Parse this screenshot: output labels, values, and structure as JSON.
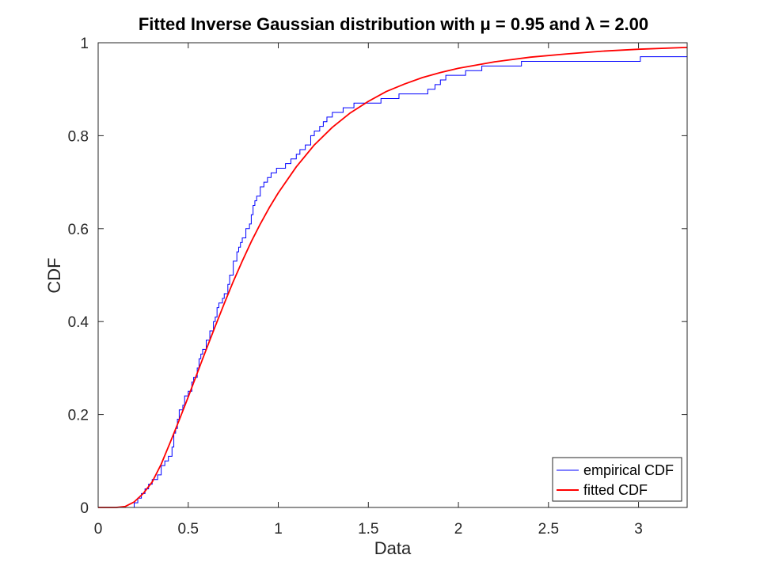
{
  "chart_data": {
    "type": "line",
    "title": "Fitted Inverse Gaussian distribution with μ = 0.95 and λ = 2.00",
    "xlabel": "Data",
    "ylabel": "CDF",
    "xlim": [
      0,
      3.27
    ],
    "ylim": [
      0,
      1
    ],
    "x_ticks": [
      0,
      0.5,
      1,
      1.5,
      2,
      2.5,
      3
    ],
    "x_tick_labels": [
      "0",
      "0.5",
      "1",
      "1.5",
      "2",
      "2.5",
      "3"
    ],
    "y_ticks": [
      0,
      0.2,
      0.4,
      0.6,
      0.8,
      1
    ],
    "y_tick_labels": [
      "0",
      "0.2",
      "0.4",
      "0.6",
      "0.8",
      "1"
    ],
    "grid": false,
    "legend_position": "bottom-right",
    "series": [
      {
        "name": "empirical CDF",
        "color": "#0000ff",
        "style": "stairs",
        "x": [
          0.2,
          0.22,
          0.24,
          0.26,
          0.28,
          0.3,
          0.33,
          0.35,
          0.37,
          0.39,
          0.41,
          0.42,
          0.43,
          0.44,
          0.45,
          0.47,
          0.48,
          0.5,
          0.52,
          0.53,
          0.55,
          0.56,
          0.57,
          0.58,
          0.6,
          0.62,
          0.64,
          0.65,
          0.66,
          0.67,
          0.69,
          0.7,
          0.72,
          0.73,
          0.75,
          0.77,
          0.78,
          0.79,
          0.8,
          0.82,
          0.84,
          0.85,
          0.86,
          0.87,
          0.88,
          0.9,
          0.92,
          0.94,
          0.96,
          0.99,
          1.04,
          1.07,
          1.1,
          1.12,
          1.15,
          1.18,
          1.2,
          1.23,
          1.25,
          1.27,
          1.3,
          1.36,
          1.42,
          1.57,
          1.67,
          1.73,
          1.83,
          1.87,
          1.9,
          1.93,
          2.04,
          2.13,
          2.35,
          3.01,
          3.27
        ],
        "y": [
          0.01,
          0.02,
          0.03,
          0.04,
          0.05,
          0.06,
          0.07,
          0.09,
          0.1,
          0.11,
          0.13,
          0.16,
          0.17,
          0.19,
          0.21,
          0.22,
          0.24,
          0.25,
          0.27,
          0.28,
          0.3,
          0.32,
          0.33,
          0.34,
          0.36,
          0.38,
          0.4,
          0.41,
          0.43,
          0.44,
          0.45,
          0.46,
          0.48,
          0.5,
          0.53,
          0.55,
          0.56,
          0.57,
          0.58,
          0.6,
          0.61,
          0.63,
          0.65,
          0.66,
          0.67,
          0.69,
          0.7,
          0.71,
          0.72,
          0.73,
          0.74,
          0.75,
          0.76,
          0.77,
          0.78,
          0.8,
          0.81,
          0.82,
          0.83,
          0.84,
          0.85,
          0.86,
          0.87,
          0.88,
          0.89,
          0.89,
          0.9,
          0.91,
          0.92,
          0.93,
          0.94,
          0.95,
          0.96,
          0.97,
          0.97
        ]
      },
      {
        "name": "fitted CDF",
        "color": "#ff0000",
        "style": "line",
        "x": [
          0,
          0.1,
          0.15,
          0.2,
          0.25,
          0.3,
          0.35,
          0.4,
          0.45,
          0.5,
          0.55,
          0.6,
          0.65,
          0.7,
          0.75,
          0.8,
          0.85,
          0.9,
          0.95,
          1.0,
          1.1,
          1.2,
          1.3,
          1.4,
          1.5,
          1.6,
          1.7,
          1.8,
          1.9,
          2.0,
          2.2,
          2.4,
          2.6,
          2.8,
          3.0,
          3.27
        ],
        "y": [
          0,
          0.0,
          0.002,
          0.012,
          0.03,
          0.055,
          0.093,
          0.14,
          0.188,
          0.238,
          0.289,
          0.34,
          0.39,
          0.439,
          0.486,
          0.53,
          0.572,
          0.61,
          0.645,
          0.677,
          0.733,
          0.78,
          0.818,
          0.849,
          0.874,
          0.895,
          0.911,
          0.925,
          0.936,
          0.945,
          0.959,
          0.969,
          0.976,
          0.982,
          0.986,
          0.99
        ]
      }
    ]
  }
}
